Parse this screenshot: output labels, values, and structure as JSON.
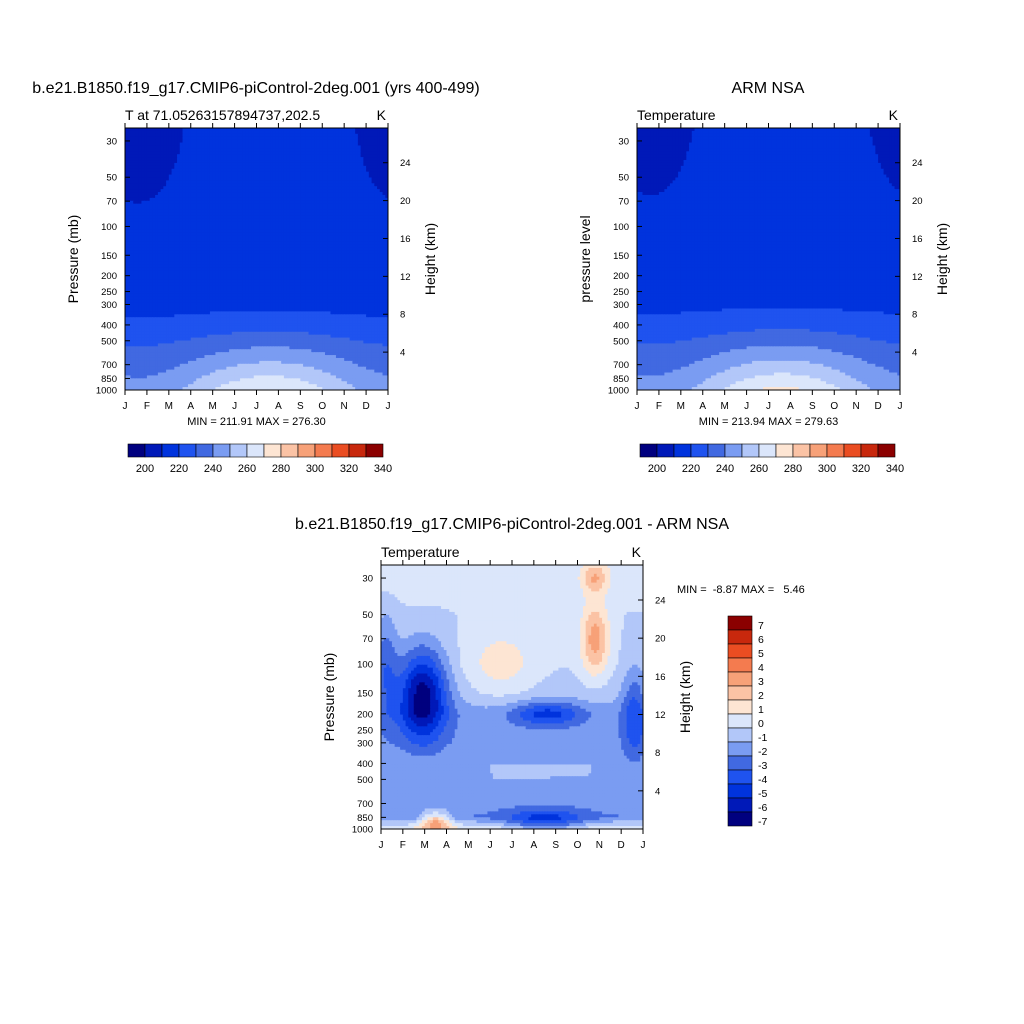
{
  "model_title": "b.e21.B1850.f19_g17.CMIP6-piControl-2deg.001 (yrs 400-499)",
  "obs_title": "ARM NSA",
  "diff_title": "b.e21.B1850.f19_g17.CMIP6-piControl-2deg.001 - ARM NSA",
  "chart_data": [
    {
      "type": "heatmap",
      "name": "model",
      "left_title": "T at 71.05263157894737,202.5",
      "unit": "K",
      "ylabel": "Pressure (mb)",
      "right_ylabel": "Height (km)",
      "months": [
        "J",
        "F",
        "M",
        "A",
        "M",
        "J",
        "J",
        "A",
        "S",
        "O",
        "N",
        "D",
        "J"
      ],
      "pressure_ticks": [
        30,
        50,
        70,
        100,
        150,
        200,
        250,
        300,
        400,
        500,
        700,
        850,
        1000
      ],
      "height_ticks": [
        4,
        8,
        12,
        16,
        20,
        24
      ],
      "stats": "MIN = 211.91 MAX = 276.30",
      "colorbar_ticks": [
        "200",
        "220",
        "240",
        "260",
        "280",
        "300",
        "320",
        "340"
      ],
      "levels": [
        200,
        210,
        220,
        230,
        240,
        250,
        260,
        270,
        280,
        290,
        300,
        310,
        320,
        330,
        340
      ],
      "palette": [
        "#00007f",
        "#0019b8",
        "#0033dd",
        "#1f53ef",
        "#4169e1",
        "#7a9cf2",
        "#b2c7f9",
        "#dbe6fb",
        "#fde5d3",
        "#fbc3a5",
        "#f7a178",
        "#f47b4f",
        "#ea4d22",
        "#c8280d",
        "#8b0000"
      ],
      "profile": [
        {
          "p": 1000,
          "v": 262
        },
        {
          "p": 850,
          "v": 256
        },
        {
          "p": 700,
          "v": 249
        },
        {
          "p": 500,
          "v": 237
        },
        {
          "p": 400,
          "v": 229
        },
        {
          "p": 300,
          "v": 222
        },
        {
          "p": 250,
          "v": 219
        },
        {
          "p": 200,
          "v": 219
        },
        {
          "p": 150,
          "v": 219
        },
        {
          "p": 100,
          "v": 219
        },
        {
          "p": 70,
          "v": 219
        },
        {
          "p": 50,
          "v": 219
        },
        {
          "p": 30,
          "v": 219
        }
      ],
      "seasonal_amp_lower": 15,
      "seasonal_amp_upper": 9
    },
    {
      "type": "heatmap",
      "name": "obs",
      "left_title": "Temperature",
      "unit": "K",
      "ylabel": "pressure level",
      "right_ylabel": "Height (km)",
      "months": [
        "J",
        "F",
        "M",
        "A",
        "M",
        "J",
        "J",
        "A",
        "S",
        "O",
        "N",
        "D",
        "J"
      ],
      "pressure_ticks": [
        30,
        50,
        70,
        100,
        150,
        200,
        250,
        300,
        400,
        500,
        700,
        850,
        1000
      ],
      "height_ticks": [
        4,
        8,
        12,
        16,
        20,
        24
      ],
      "stats": "MIN = 213.94 MAX = 279.63",
      "colorbar_ticks": [
        "200",
        "220",
        "240",
        "260",
        "280",
        "300",
        "320",
        "340"
      ],
      "levels": [
        200,
        210,
        220,
        230,
        240,
        250,
        260,
        270,
        280,
        290,
        300,
        310,
        320,
        330,
        340
      ],
      "palette": [
        "#00007f",
        "#0019b8",
        "#0033dd",
        "#1f53ef",
        "#4169e1",
        "#7a9cf2",
        "#b2c7f9",
        "#dbe6fb",
        "#fde5d3",
        "#fbc3a5",
        "#f7a178",
        "#f47b4f",
        "#ea4d22",
        "#c8280d",
        "#8b0000"
      ],
      "profile": [
        {
          "p": 1000,
          "v": 263
        },
        {
          "p": 850,
          "v": 257
        },
        {
          "p": 700,
          "v": 250
        },
        {
          "p": 500,
          "v": 238
        },
        {
          "p": 400,
          "v": 230
        },
        {
          "p": 300,
          "v": 223
        },
        {
          "p": 250,
          "v": 219
        },
        {
          "p": 200,
          "v": 219
        },
        {
          "p": 150,
          "v": 219
        },
        {
          "p": 100,
          "v": 219
        },
        {
          "p": 70,
          "v": 219
        },
        {
          "p": 50,
          "v": 219
        },
        {
          "p": 30,
          "v": 219
        }
      ],
      "seasonal_amp_lower": 16,
      "seasonal_amp_upper": 8
    },
    {
      "type": "heatmap",
      "name": "diff",
      "left_title": "Temperature",
      "unit": "K",
      "ylabel": "Pressure (mb)",
      "right_ylabel": "Height (km)",
      "months": [
        "J",
        "F",
        "M",
        "A",
        "M",
        "J",
        "J",
        "A",
        "S",
        "O",
        "N",
        "D",
        "J"
      ],
      "pressure_ticks": [
        30,
        50,
        70,
        100,
        150,
        200,
        250,
        300,
        400,
        500,
        700,
        850,
        1000
      ],
      "height_ticks": [
        4,
        8,
        12,
        16,
        20,
        24
      ],
      "stats": "MIN =  -8.87 MAX =   5.46",
      "colorbar_ticks": [
        "7",
        "6",
        "5",
        "4",
        "3",
        "2",
        "1",
        "0",
        "-1",
        "-2",
        "-3",
        "-4",
        "-5",
        "-6",
        "-7"
      ],
      "levels": [
        -7,
        -6,
        -5,
        -4,
        -3,
        -2,
        -1,
        0,
        1,
        2,
        3,
        4,
        5,
        6,
        7
      ],
      "palette": [
        "#00007f",
        "#0019b8",
        "#0033dd",
        "#1f53ef",
        "#4169e1",
        "#7a9cf2",
        "#b2c7f9",
        "#dbe6fb",
        "#fde5d3",
        "#fbc3a5",
        "#f7a178",
        "#f47b4f",
        "#ea4d22",
        "#c8280d",
        "#8b0000"
      ],
      "profile": [
        {
          "p": 1000,
          "v": 0.5
        },
        {
          "p": 850,
          "v": -2.5
        },
        {
          "p": 700,
          "v": -2
        },
        {
          "p": 500,
          "v": -1.5
        },
        {
          "p": 400,
          "v": -1.5
        },
        {
          "p": 300,
          "v": -2
        },
        {
          "p": 250,
          "v": -2
        },
        {
          "p": 200,
          "v": -2
        },
        {
          "p": 150,
          "v": -1
        },
        {
          "p": 100,
          "v": -0.5
        },
        {
          "p": 70,
          "v": -0.5
        },
        {
          "p": 50,
          "v": -0.5
        },
        {
          "p": 30,
          "v": 0
        }
      ],
      "anomalies": [
        {
          "m": 1.9,
          "p": 150,
          "sm": 0.8,
          "sl": 0.45,
          "a": -6
        },
        {
          "m": 9.8,
          "p": 70,
          "sm": 0.45,
          "sl": 0.35,
          "a": 3.5
        },
        {
          "m": 9.8,
          "p": 30,
          "sm": 0.4,
          "sl": 0.15,
          "a": 2.5
        },
        {
          "m": 2.5,
          "p": 900,
          "sm": 0.5,
          "sl": 0.1,
          "a": 4
        },
        {
          "m": 7.5,
          "p": 900,
          "sm": 1.2,
          "sl": 0.12,
          "a": -3
        },
        {
          "m": 7.6,
          "p": 200,
          "sm": 1.1,
          "sl": 0.12,
          "a": -3
        },
        {
          "m": 5.5,
          "p": 100,
          "sm": 1.1,
          "sl": 0.35,
          "a": 1.5
        },
        {
          "m": 0.2,
          "p": 100,
          "sm": 0.4,
          "sl": 0.5,
          "a": -2.5
        },
        {
          "m": 11.6,
          "p": 200,
          "sm": 0.4,
          "sl": 0.5,
          "a": -2.5
        }
      ]
    }
  ]
}
